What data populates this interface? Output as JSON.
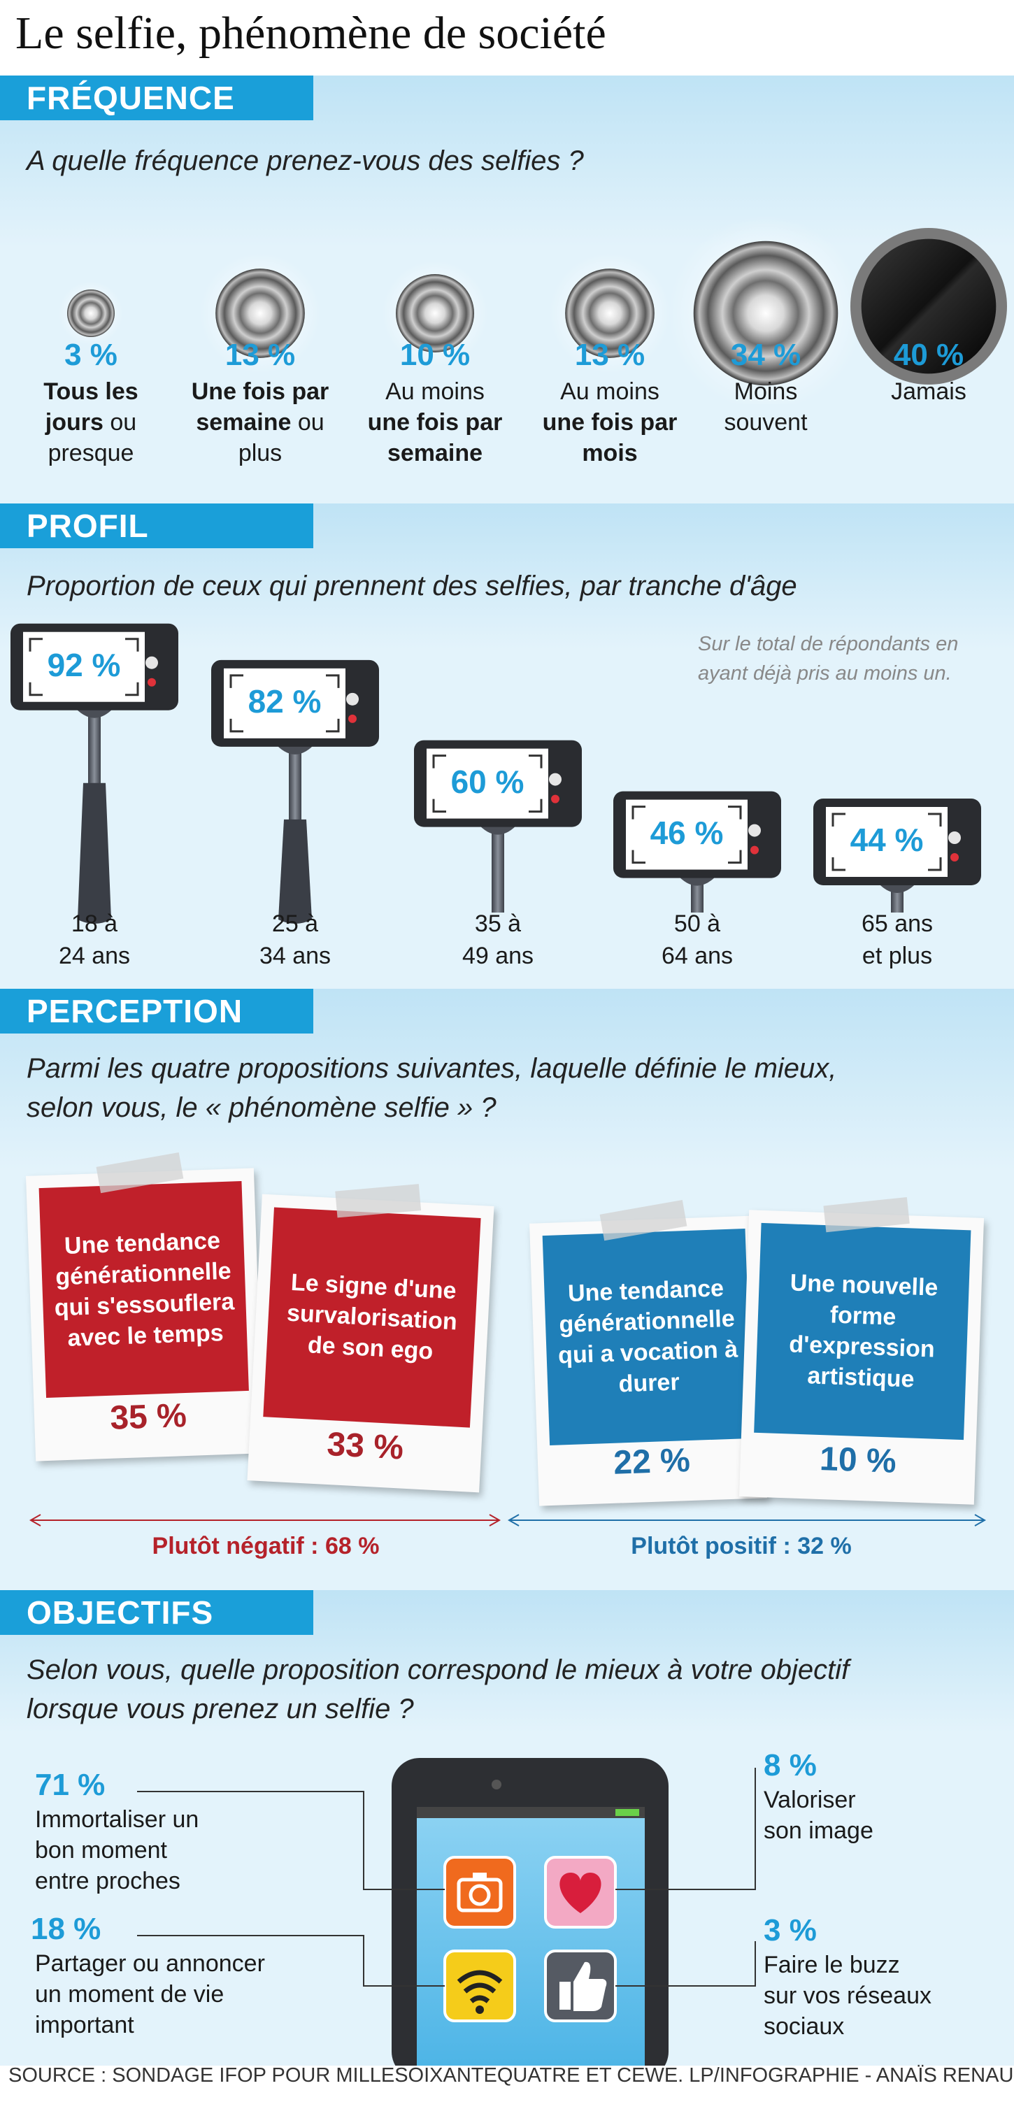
{
  "title": "Le selfie, phénomène de société",
  "frequence": {
    "tag": "FRÉQUENCE",
    "question": "A quelle fréquence prenez-vous des selfies ?",
    "items": [
      {
        "pct": "3 %",
        "label_bold_1": "Tous les",
        "label_bold_2": "jours",
        "label_rest_2": " ou",
        "label_rest_3": "presque",
        "value": 3
      },
      {
        "pct": "13 %",
        "label_bold_1": "Une fois par",
        "label_bold_2": "semaine",
        "label_rest_2": " ou",
        "label_rest_3": "plus",
        "value": 13
      },
      {
        "pct": "10 %",
        "label_1": "Au moins",
        "label_bold_2": "une fois par",
        "label_bold_3": "semaine",
        "value": 10
      },
      {
        "pct": "13 %",
        "label_1": "Au moins",
        "label_bold_2": "une fois par",
        "label_bold_3": "mois",
        "value": 13
      },
      {
        "pct": "34 %",
        "label_1": "Moins",
        "label_2": "souvent",
        "value": 34
      },
      {
        "pct": "40 %",
        "label_1": "Jamais",
        "value": 40
      }
    ]
  },
  "profil": {
    "tag": "PROFIL",
    "question": "Proportion de ceux qui prennent des selfies, par tranche d'âge",
    "note_1": "Sur le total de répondants en",
    "note_2": "ayant déjà pris au moins un.",
    "items": [
      {
        "pct": "92 %",
        "age_1": "18 à",
        "age_2": "24 ans",
        "value": 92
      },
      {
        "pct": "82 %",
        "age_1": "25 à",
        "age_2": "34 ans",
        "value": 82
      },
      {
        "pct": "60 %",
        "age_1": "35 à",
        "age_2": "49 ans",
        "value": 60
      },
      {
        "pct": "46 %",
        "age_1": "50 à",
        "age_2": "64 ans",
        "value": 46
      },
      {
        "pct": "44 %",
        "age_1": "65 ans",
        "age_2": "et plus",
        "value": 44
      }
    ]
  },
  "perception": {
    "tag": "PERCEPTION",
    "question_1": "Parmi les quatre propositions suivantes, laquelle définie le mieux,",
    "question_2": "selon vous, le « phénomène selfie » ?",
    "cards": [
      {
        "text": "Une tendance générationnelle qui s'essouflera avec le temps",
        "pct": "35 %",
        "color": "#c0202a"
      },
      {
        "text": "Le signe d'une survalorisation de son ego",
        "pct": "33 %",
        "color": "#c0202a"
      },
      {
        "text": "Une tendance générationnelle qui a vocation à durer",
        "pct": "22 %",
        "color": "#1f7fb8"
      },
      {
        "text": "Une nouvelle forme d'expression artistique",
        "pct": "10 %",
        "color": "#1f7fb8"
      }
    ],
    "negatif": "Plutôt négatif : 68 %",
    "positif": "Plutôt positif : 32 %"
  },
  "objectifs": {
    "tag": "OBJECTIFS",
    "question_1": "Selon vous, quelle proposition correspond le mieux à votre objectif",
    "question_2": "lorsque vous prenez un selfie ?",
    "items": [
      {
        "pct": "71 %",
        "text_1": "Immortaliser un",
        "text_2": "bon moment",
        "text_3": "entre proches",
        "icon": "camera-icon"
      },
      {
        "pct": "18 %",
        "text_1": "Partager ou annoncer",
        "text_2": "un moment de vie",
        "text_3": "important",
        "icon": "wifi-icon"
      },
      {
        "pct": "8 %",
        "text_1": "Valoriser",
        "text_2": "son image",
        "icon": "heart-icon"
      },
      {
        "pct": "3 %",
        "text_1": "Faire le buzz",
        "text_2": "sur vos réseaux",
        "text_3": "sociaux",
        "icon": "thumbs-up-icon"
      }
    ]
  },
  "source": "SOURCE : SONDAGE IFOP POUR MILLESOIXANTEQUATRE ET CEWE.      LP/INFOGRAPHIE - ANAÏS RENAUD.",
  "chart_data": [
    {
      "type": "bar",
      "categories": [
        "Tous les jours ou presque",
        "Une fois par semaine ou plus",
        "Au moins une fois par semaine",
        "Au moins une fois par mois",
        "Moins souvent",
        "Jamais"
      ],
      "values": [
        3,
        13,
        10,
        13,
        34,
        40
      ]
    },
    {
      "type": "bar",
      "categories": [
        "18 à 24 ans",
        "25 à 34 ans",
        "35 à 49 ans",
        "50 à 64 ans",
        "65 ans et plus"
      ],
      "values": [
        92,
        82,
        60,
        46,
        44
      ]
    },
    {
      "type": "bar",
      "categories": [
        "Une tendance générationnelle qui s'essouflera avec le temps",
        "Le signe d'une survalorisation de son ego",
        "Une tendance générationnelle qui a vocation à durer",
        "Une nouvelle forme d'expression artistique"
      ],
      "values": [
        35,
        33,
        22,
        10
      ]
    },
    {
      "type": "bar",
      "categories": [
        "Immortaliser un bon moment entre proches",
        "Partager ou annoncer un moment de vie important",
        "Valoriser son image",
        "Faire le buzz sur vos réseaux sociaux"
      ],
      "values": [
        71,
        18,
        8,
        3
      ]
    }
  ]
}
